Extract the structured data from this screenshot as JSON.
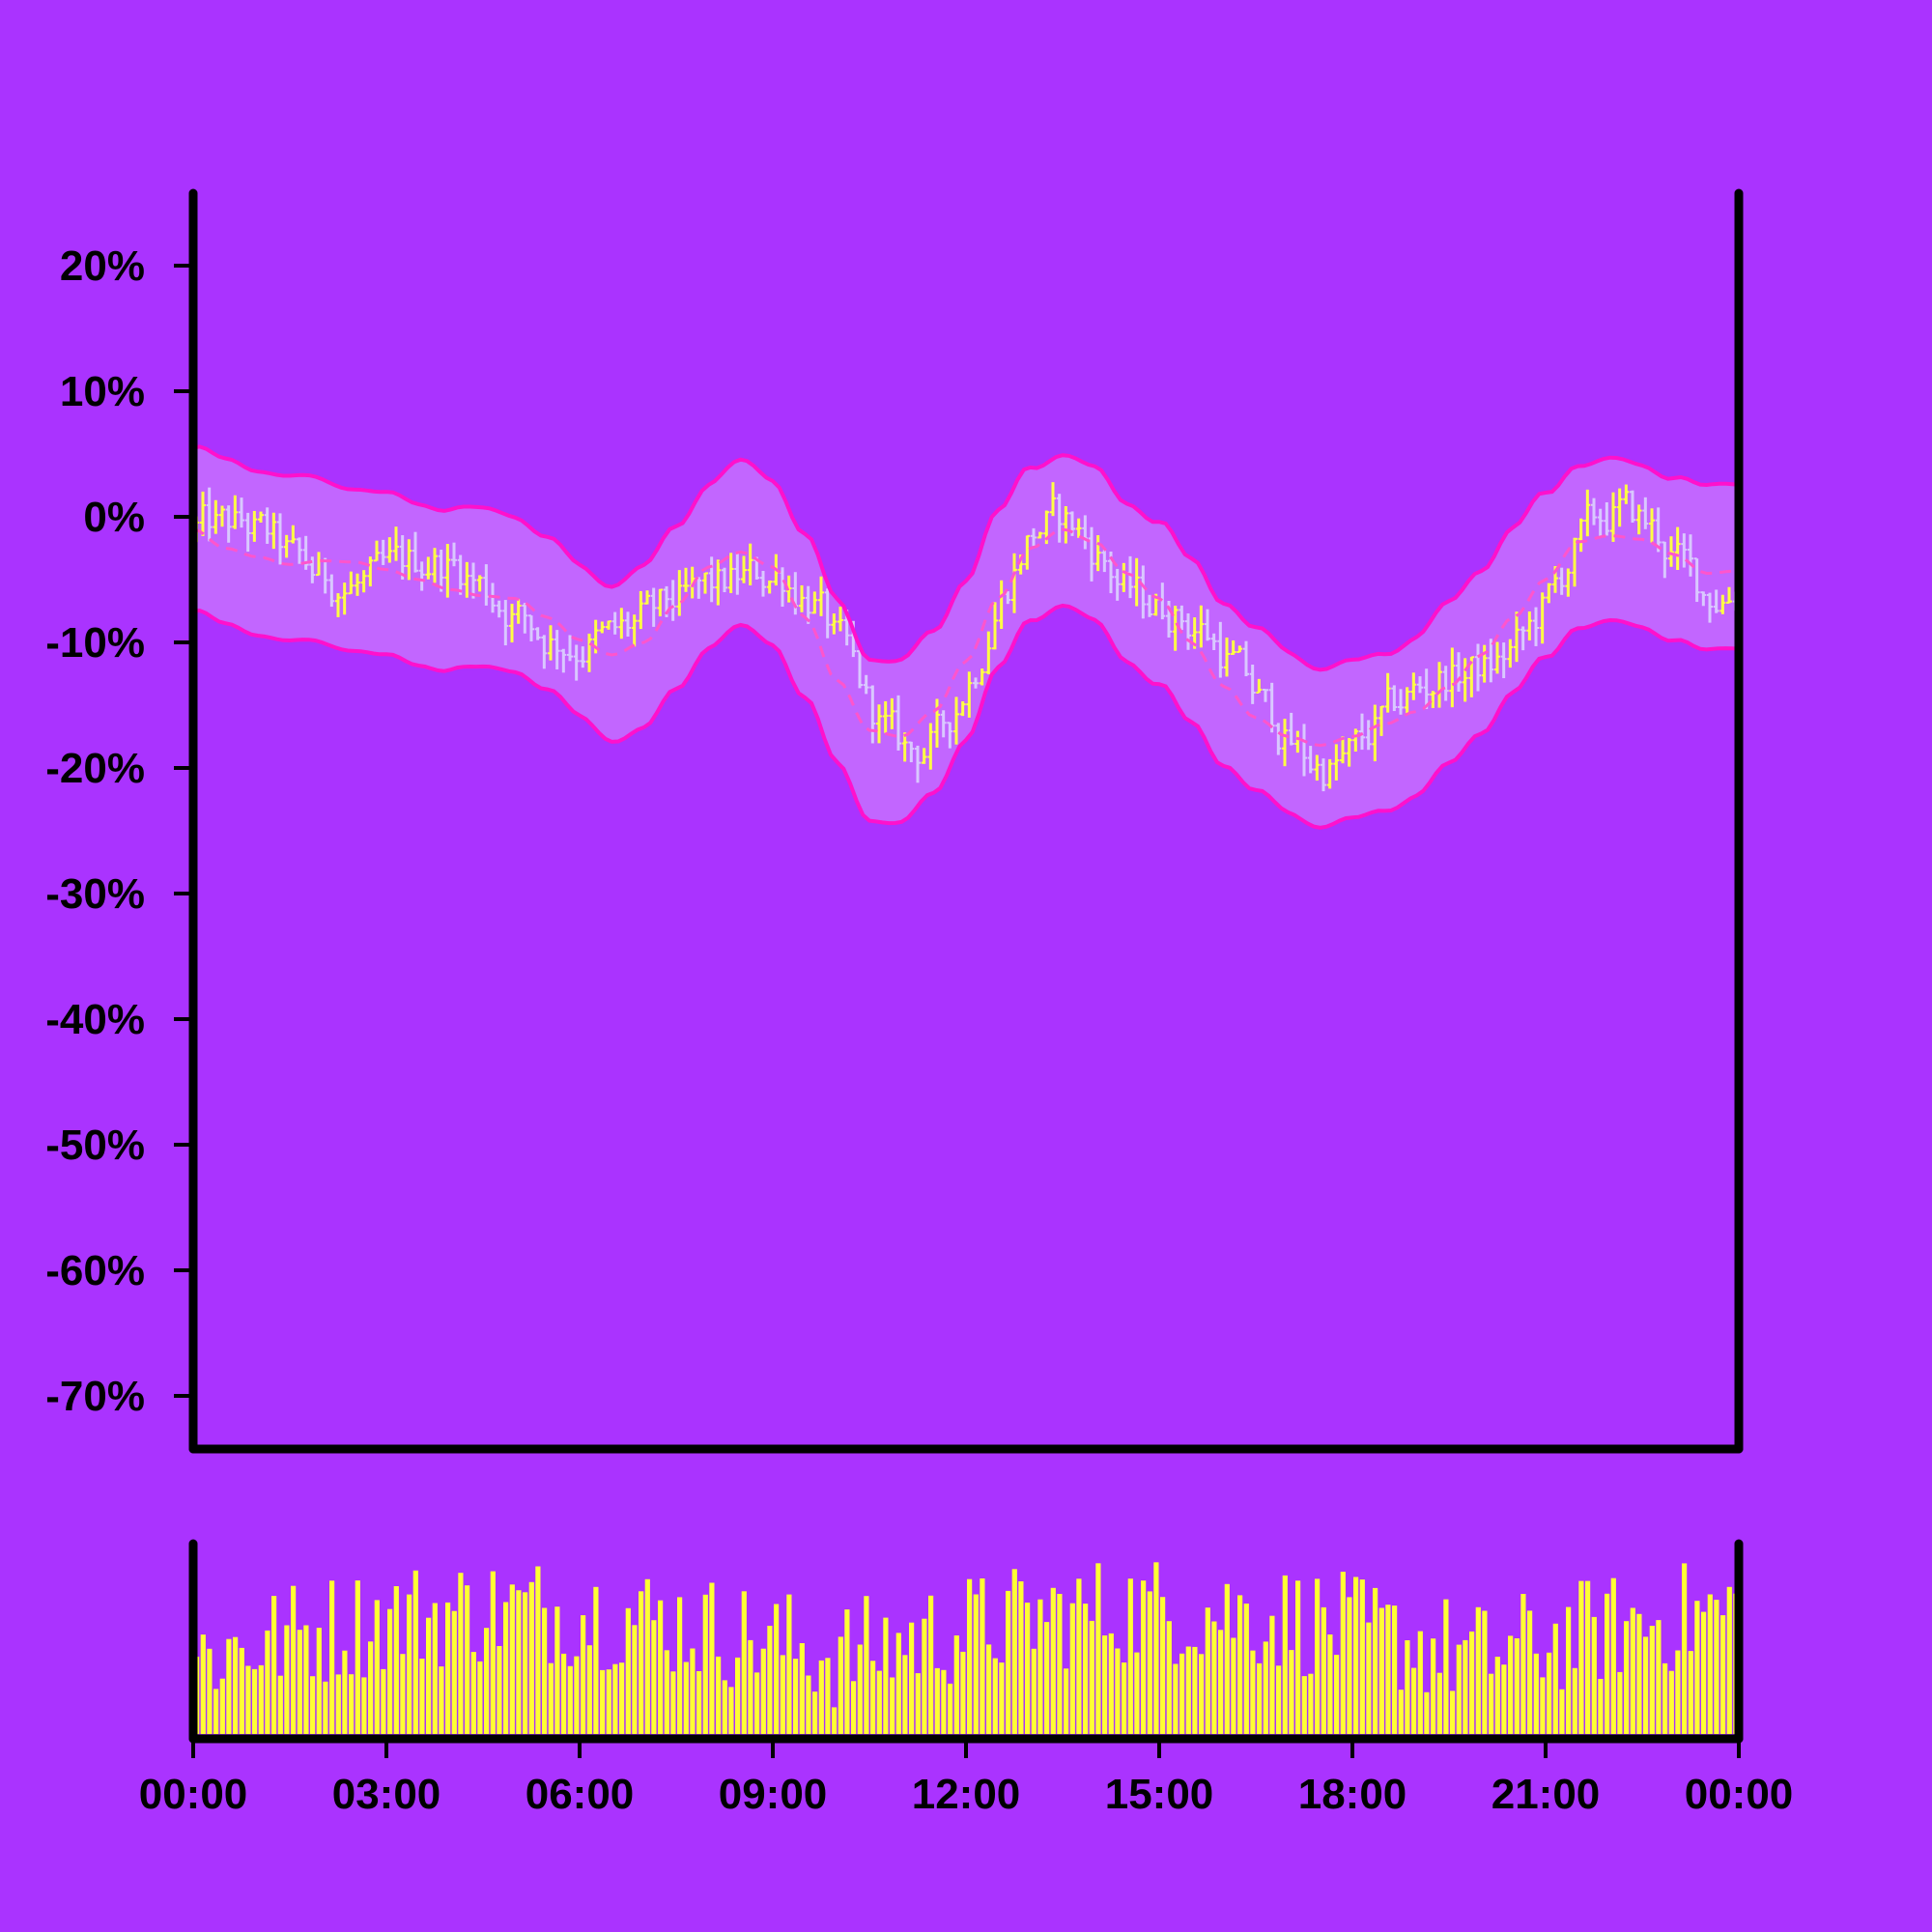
{
  "colors": {
    "background": "#AA33FF",
    "axis": "#000000",
    "band_fill": "#C266FF",
    "band_line": "#FF11CC",
    "mid_line": "#FF55CC",
    "bar_up": "#FFFF44",
    "bar_down": "#D9C8FF",
    "volume": "#FFFF33"
  },
  "chart_data": {
    "type": "ohlc",
    "x_unit": "time of day",
    "y_unit": "percent change",
    "ylim": [
      -74,
      26
    ],
    "xlim": [
      "00:00",
      "24:00"
    ],
    "grid": false,
    "legend": "none",
    "y_ticks": [
      "20%",
      "10%",
      "0%",
      "-10%",
      "-20%",
      "-30%",
      "-40%",
      "-50%",
      "-60%",
      "-70%"
    ],
    "x_ticks": [
      "00:00",
      "03:00",
      "06:00",
      "09:00",
      "12:00",
      "15:00",
      "18:00",
      "21:00",
      "00:00"
    ],
    "bar_interval_minutes": 6,
    "middle_line": [
      {
        "t": "00:00",
        "v": -1.0
      },
      {
        "t": "00:30",
        "v": -2.5
      },
      {
        "t": "01:00",
        "v": -3.2
      },
      {
        "t": "01:30",
        "v": -3.8
      },
      {
        "t": "02:00",
        "v": -3.5
      },
      {
        "t": "02:30",
        "v": -3.6
      },
      {
        "t": "03:00",
        "v": -4.2
      },
      {
        "t": "03:30",
        "v": -5.0
      },
      {
        "t": "04:00",
        "v": -5.8
      },
      {
        "t": "04:30",
        "v": -6.3
      },
      {
        "t": "05:00",
        "v": -6.5
      },
      {
        "t": "05:30",
        "v": -8.0
      },
      {
        "t": "06:00",
        "v": -9.8
      },
      {
        "t": "06:30",
        "v": -11.0
      },
      {
        "t": "07:00",
        "v": -10.0
      },
      {
        "t": "07:30",
        "v": -7.0
      },
      {
        "t": "08:00",
        "v": -4.0
      },
      {
        "t": "08:30",
        "v": -2.8
      },
      {
        "t": "09:00",
        "v": -4.0
      },
      {
        "t": "09:30",
        "v": -8.0
      },
      {
        "t": "10:00",
        "v": -13.0
      },
      {
        "t": "10:30",
        "v": -17.0
      },
      {
        "t": "11:00",
        "v": -17.5
      },
      {
        "t": "11:30",
        "v": -15.5
      },
      {
        "t": "12:00",
        "v": -11.5
      },
      {
        "t": "12:30",
        "v": -6.5
      },
      {
        "t": "13:00",
        "v": -2.5
      },
      {
        "t": "13:30",
        "v": -1.0
      },
      {
        "t": "14:00",
        "v": -2.0
      },
      {
        "t": "14:30",
        "v": -4.5
      },
      {
        "t": "15:00",
        "v": -6.5
      },
      {
        "t": "15:30",
        "v": -10.0
      },
      {
        "t": "16:00",
        "v": -13.5
      },
      {
        "t": "16:30",
        "v": -16.0
      },
      {
        "t": "17:00",
        "v": -17.5
      },
      {
        "t": "17:30",
        "v": -18.2
      },
      {
        "t": "18:00",
        "v": -17.5
      },
      {
        "t": "18:30",
        "v": -16.5
      },
      {
        "t": "19:00",
        "v": -15.5
      },
      {
        "t": "19:30",
        "v": -13.5
      },
      {
        "t": "20:00",
        "v": -11.0
      },
      {
        "t": "20:30",
        "v": -8.0
      },
      {
        "t": "21:00",
        "v": -5.0
      },
      {
        "t": "21:30",
        "v": -2.0
      },
      {
        "t": "22:00",
        "v": -1.5
      },
      {
        "t": "22:30",
        "v": -1.8
      },
      {
        "t": "23:00",
        "v": -3.0
      },
      {
        "t": "23:30",
        "v": -4.5
      },
      {
        "t": "24:00",
        "v": -4.3
      }
    ],
    "band_halfwidth": [
      {
        "t": "00:00",
        "v": 6.5
      },
      {
        "t": "03:00",
        "v": 6.5
      },
      {
        "t": "06:00",
        "v": 6.0
      },
      {
        "t": "07:00",
        "v": 6.5
      },
      {
        "t": "08:30",
        "v": 6.5
      },
      {
        "t": "11:00",
        "v": 6.5
      },
      {
        "t": "13:30",
        "v": 6.0
      },
      {
        "t": "15:00",
        "v": 6.5
      },
      {
        "t": "18:00",
        "v": 6.3
      },
      {
        "t": "21:00",
        "v": 6.5
      },
      {
        "t": "24:00",
        "v": 6.5
      }
    ],
    "price_high": 5.5,
    "price_low": -24.5,
    "volume_relative_max": 1.0
  }
}
